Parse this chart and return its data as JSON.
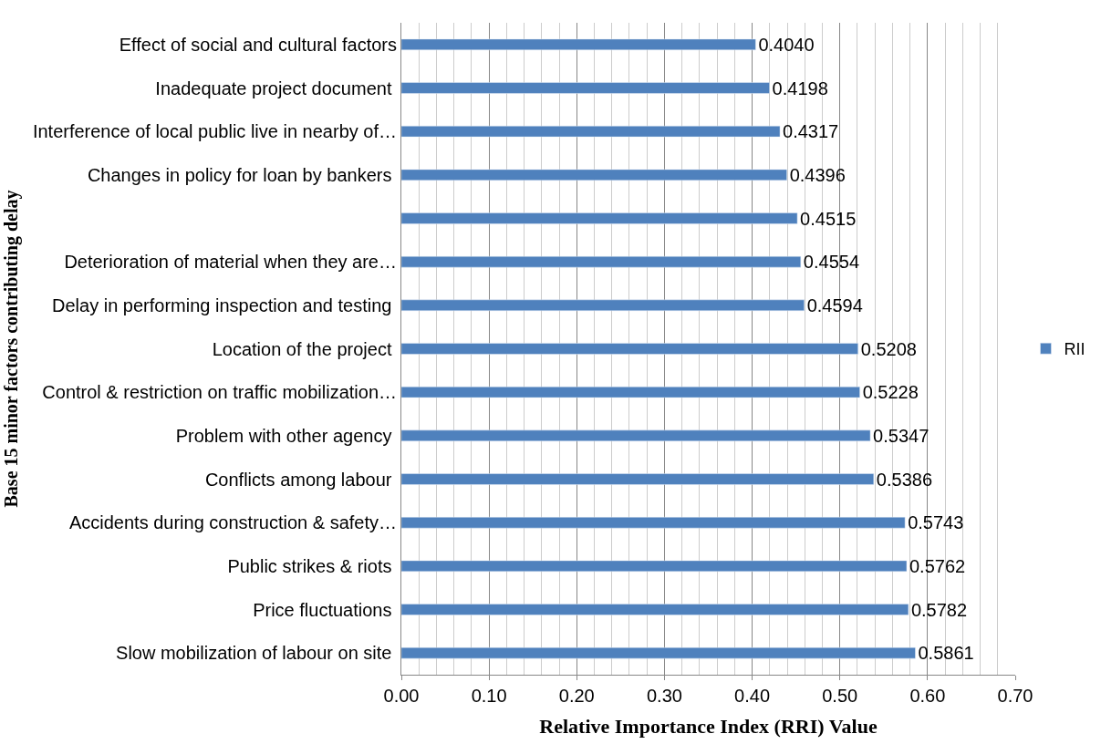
{
  "chart_data": {
    "type": "bar",
    "orientation": "horizontal",
    "xlabel": "Relative Importance Index (RRI) Value",
    "ylabel": "Base 15 minor factors contributing delay",
    "categories": [
      "Effect of social and cultural factors",
      "Inadequate project document ",
      "Interference of local public live in nearby of…",
      "Changes in policy for loan by bankers ",
      null,
      "Deterioration of material when they are…",
      "Delay in performing inspection and testing ",
      "Location of the project ",
      "Control & restriction on traffic mobilization…",
      "Problem with other agency ",
      "Conflicts among labour ",
      "Accidents during construction & safety…",
      "Public strikes & riots ",
      "Price fluctuations ",
      "Slow mobilization of labour on site "
    ],
    "series": [
      {
        "name": "RII",
        "color": "#4f81bd",
        "values": [
          0.404,
          0.4198,
          0.4317,
          0.4396,
          0.4515,
          0.4554,
          0.4594,
          0.5208,
          0.5228,
          0.5347,
          0.5386,
          0.5743,
          0.5762,
          0.5782,
          0.5861
        ]
      }
    ],
    "value_labels": [
      "0.4040",
      "0.4198",
      "0.4317",
      "0.4396",
      "0.4515",
      "0.4554",
      "0.4594",
      "0.5208",
      "0.5228",
      "0.5347",
      "0.5386",
      "0.5743",
      "0.5762",
      "0.5782",
      "0.5861"
    ],
    "xlim": [
      0,
      0.7
    ],
    "xticks": [
      {
        "value": 0,
        "label": "0.00"
      },
      {
        "value": 0.1,
        "label": "0.10"
      },
      {
        "value": 0.2,
        "label": "0.20"
      },
      {
        "value": 0.3,
        "label": "0.30"
      },
      {
        "value": 0.4,
        "label": "0.40"
      },
      {
        "value": 0.5,
        "label": "0.50"
      },
      {
        "value": 0.6,
        "label": "0.60"
      },
      {
        "value": 0.7,
        "label": "0.70"
      }
    ],
    "grid": "x",
    "legend": "right"
  }
}
